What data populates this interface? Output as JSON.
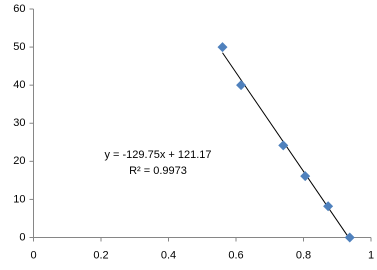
{
  "chart_data": {
    "type": "scatter",
    "x": [
      0.56,
      0.615,
      0.74,
      0.805,
      0.873,
      0.937
    ],
    "series": [
      {
        "color": "#4f81bd",
        "values": [
          50,
          40,
          24.2,
          16.1,
          8.2,
          0
        ]
      }
    ],
    "xlim": [
      0,
      1
    ],
    "xticks": [
      0,
      0.2,
      0.4,
      0.6,
      0.8,
      1
    ],
    "ylim": [
      0,
      60
    ],
    "yticks": [
      0,
      10,
      20,
      30,
      40,
      50,
      60
    ],
    "grid": false,
    "trendline": {
      "slope": -129.75,
      "intercept": 121.17,
      "color": "#000000"
    },
    "annotations": [
      "y = -129.75x + 121.17",
      "R² = 0.9973"
    ]
  }
}
